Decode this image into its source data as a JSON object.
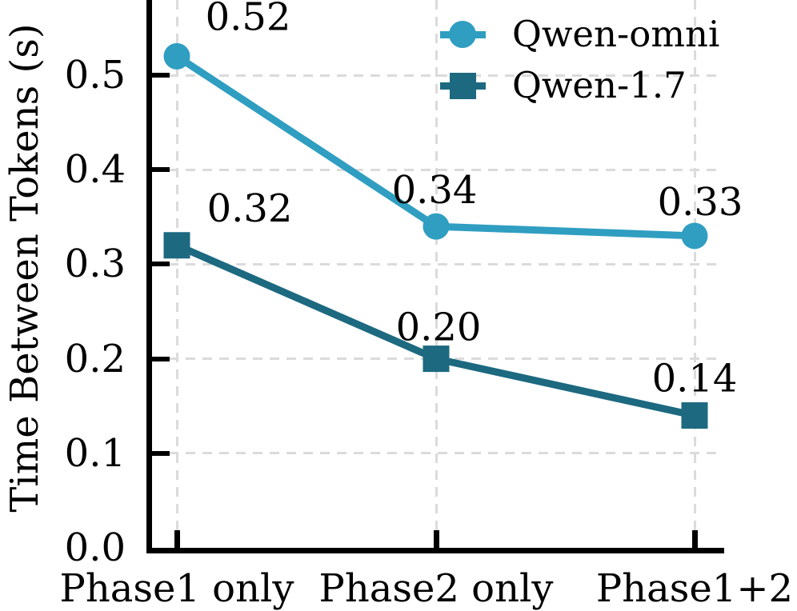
{
  "chart_data": {
    "type": "line",
    "title": "",
    "xlabel": "",
    "ylabel": "Time Between Tokens (s)",
    "categories": [
      "Phase1 only",
      "Phase2 only",
      "Phase1+2"
    ],
    "yticks": [
      "0.0",
      "0.1",
      "0.2",
      "0.3",
      "0.4",
      "0.5"
    ],
    "ylim": [
      0,
      0.58
    ],
    "grid": "dashed, light gray, horizontal and vertical",
    "legend_position": "upper right inside plot, no frame",
    "series": [
      {
        "name": "Qwen-omni",
        "marker": "circle",
        "color": "#2F9EC1",
        "values": [
          0.52,
          0.34,
          0.33
        ],
        "point_labels": [
          "0.52",
          "0.34",
          "0.33"
        ],
        "label_dx": [
          89,
          -2,
          7
        ],
        "label_dy": [
          -50,
          -46,
          -43
        ]
      },
      {
        "name": "Qwen-1.7",
        "marker": "square",
        "color": "#1C6980",
        "values": [
          0.32,
          0.2,
          0.14
        ],
        "point_labels": [
          "0.32",
          "0.20",
          "0.14"
        ],
        "label_dx": [
          91,
          3,
          0
        ],
        "label_dy": [
          -47,
          -40,
          -47
        ]
      }
    ],
    "colors": {
      "grid": "#DBDBDB",
      "axis": "#000000",
      "text": "#000000"
    }
  }
}
